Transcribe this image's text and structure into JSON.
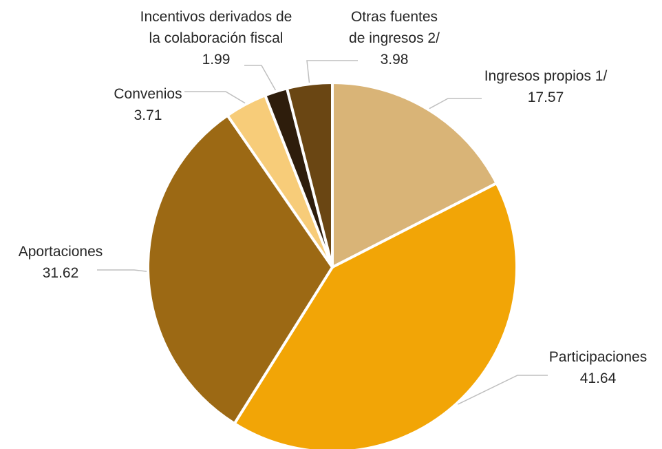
{
  "chart_data": {
    "type": "pie",
    "categories": [
      "Ingresos propios 1/",
      "Participaciones",
      "Aportaciones",
      "Convenios",
      "Incentivos derivados de la colaboración fiscal",
      "Otras fuentes de ingresos 2/"
    ],
    "values": [
      17.57,
      41.64,
      31.62,
      3.71,
      1.99,
      3.98
    ],
    "value_labels": [
      "17.57",
      "41.64",
      "31.62",
      "3.71",
      "1.99",
      "3.98"
    ],
    "colors": [
      "#D9B477",
      "#F2A506",
      "#9C6914",
      "#F7CC79",
      "#2E1D0C",
      "#6A4613"
    ],
    "label_lines": [
      [
        "Ingresos propios 1/"
      ],
      [
        "Participaciones"
      ],
      [
        "Aportaciones"
      ],
      [
        "Convenios"
      ],
      [
        "Incentivos derivados de",
        "la colaboración fiscal"
      ],
      [
        "Otras fuentes",
        "de ingresos 2/"
      ]
    ],
    "start_angle": "12 o'clock",
    "direction": "clockwise",
    "legend": "none",
    "title": ""
  }
}
